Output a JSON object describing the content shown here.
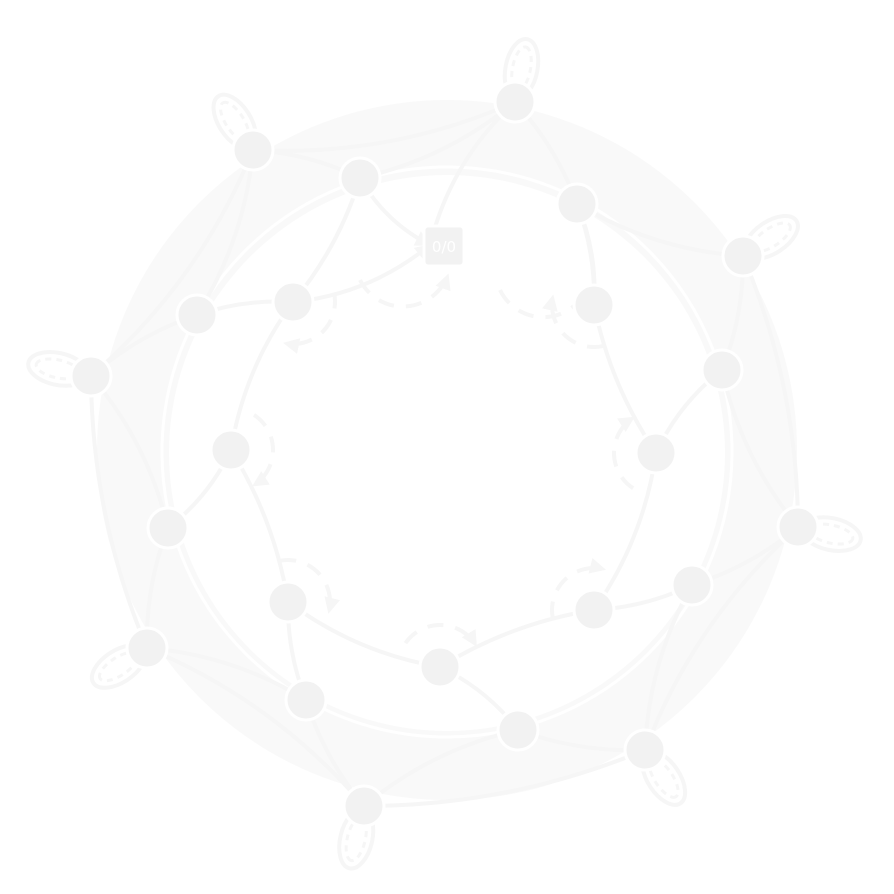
{
  "diagram": {
    "start_node": {
      "label": "0/0"
    },
    "node_count": 24,
    "colors": {
      "background": "#ffffff",
      "ring": "#f9f9f9",
      "stroke": "#f6f6f6",
      "node_fill": "#f2f2f2",
      "node_stroke": "#ffffff"
    }
  }
}
